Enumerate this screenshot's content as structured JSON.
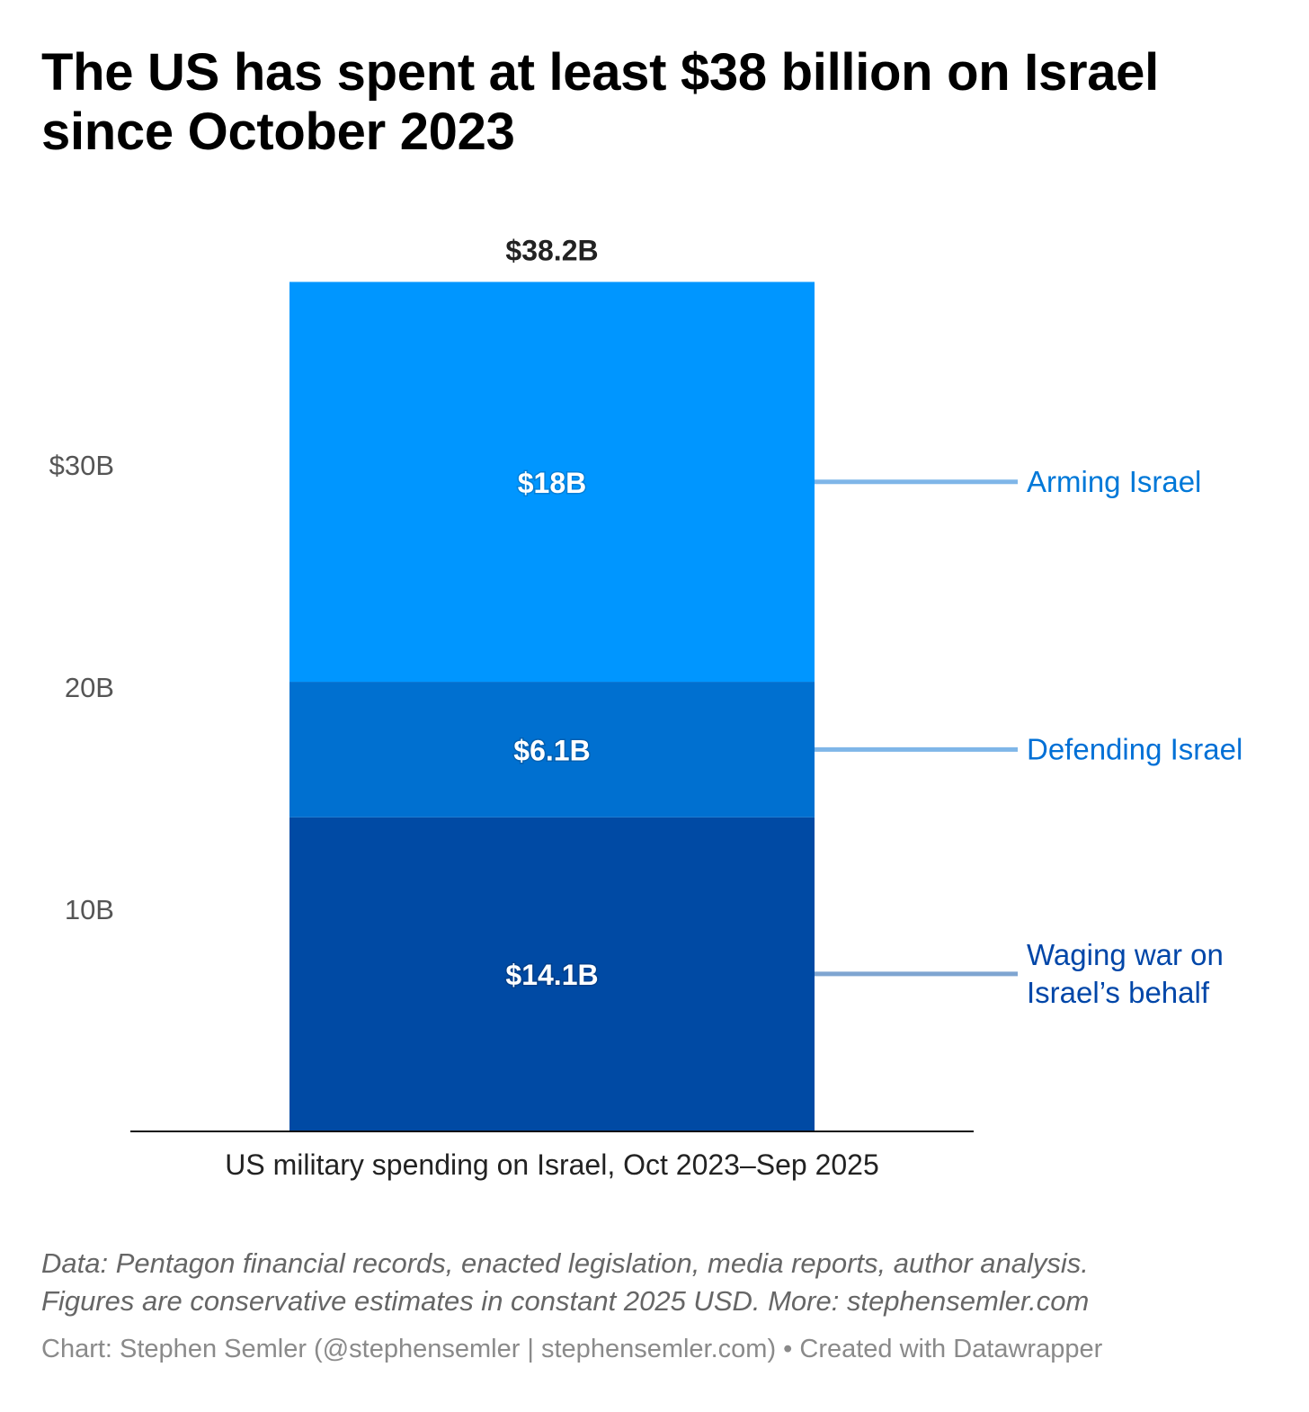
{
  "title": "The US has spent at least $38 billion on Israel since October 2023",
  "chart_data": {
    "type": "bar",
    "stacked": true,
    "categories": [
      "US military spending on Israel, Oct 2023–Sep 2025"
    ],
    "series": [
      {
        "name": "Waging war on Israel’s behalf",
        "label_lines": [
          "Waging war on",
          "Israel’s behalf"
        ],
        "values": [
          14.1
        ],
        "data_label": "$14.1B",
        "color": "#004aa4",
        "label_color": "#0046a8",
        "line_color": "#7fa5d1"
      },
      {
        "name": "Defending Israel",
        "label_lines": [
          "Defending Israel"
        ],
        "values": [
          6.1
        ],
        "data_label": "$6.1B",
        "color": "#0070d0",
        "label_color": "#0070d6",
        "line_color": "#7fb6e8"
      },
      {
        "name": "Arming Israel",
        "label_lines": [
          "Arming Israel"
        ],
        "values": [
          18
        ],
        "data_label": "$18B",
        "color": "#0096ff",
        "label_color": "#0078d8",
        "line_color": "#7fb6e8"
      }
    ],
    "total_label": "$38.2B",
    "y_ticks": [
      {
        "value": 10,
        "label": "10B"
      },
      {
        "value": 20,
        "label": "20B"
      },
      {
        "value": 30,
        "label": "$30B"
      }
    ],
    "ylim": [
      0,
      38.2
    ],
    "xlabel": "",
    "ylabel": "",
    "grid": false,
    "legend": "direct labels right"
  },
  "notes": [
    "Data: Pentagon financial records, enacted legislation, media reports, author analysis.",
    "Figures are conservative estimates in constant 2025 USD. More: stephensemler.com"
  ],
  "byline": "Chart: Stephen Semler (@stephensemler | stephensemler.com) • Created with Datawrapper"
}
